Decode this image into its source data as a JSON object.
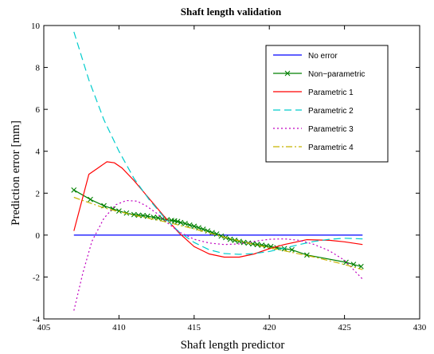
{
  "chart_data": {
    "type": "line",
    "title": "Shaft length validation",
    "xlabel": "Shaft length predictor",
    "ylabel": "Prediction error [mm]",
    "xlim": [
      405,
      430
    ],
    "ylim": [
      -4,
      10
    ],
    "xticks": [
      405,
      410,
      415,
      420,
      425,
      430
    ],
    "yticks": [
      -4,
      -2,
      0,
      2,
      4,
      6,
      8,
      10
    ],
    "grid": false,
    "legend_position": "top-right",
    "series": [
      {
        "name": "No error",
        "color": "#0000ff",
        "dash": "solid",
        "marker": "none",
        "x": [
          407,
          426.2
        ],
        "y": [
          0,
          0
        ]
      },
      {
        "name": "Non−parametric",
        "color": "#008000",
        "dash": "solid",
        "marker": "x",
        "x": [
          407,
          408.1,
          409,
          409.6,
          410,
          410.5,
          411,
          411.3,
          411.6,
          411.9,
          412.3,
          412.6,
          412.9,
          413.2,
          413.5,
          413.7,
          413.9,
          414.1,
          414.4,
          414.7,
          415,
          415.3,
          415.6,
          415.9,
          416.2,
          416.5,
          416.8,
          417.1,
          417.4,
          417.7,
          418,
          418.3,
          418.6,
          418.9,
          419.2,
          419.5,
          419.8,
          420.1,
          420.5,
          421,
          421.5,
          422.5,
          425.1,
          425.6,
          426.1
        ],
        "y": [
          2.15,
          1.7,
          1.4,
          1.25,
          1.15,
          1.05,
          0.98,
          0.95,
          0.93,
          0.9,
          0.85,
          0.82,
          0.78,
          0.73,
          0.7,
          0.68,
          0.65,
          0.6,
          0.55,
          0.48,
          0.42,
          0.35,
          0.28,
          0.2,
          0.12,
          0.05,
          -0.05,
          -0.12,
          -0.2,
          -0.25,
          -0.3,
          -0.35,
          -0.38,
          -0.42,
          -0.45,
          -0.48,
          -0.52,
          -0.55,
          -0.6,
          -0.65,
          -0.7,
          -0.95,
          -1.3,
          -1.4,
          -1.5
        ]
      },
      {
        "name": "Parametric 1",
        "color": "#ff0000",
        "dash": "solid",
        "marker": "none",
        "x": [
          407,
          408,
          408.6,
          409.2,
          409.7,
          410.2,
          411,
          412,
          413,
          414,
          415,
          416,
          417,
          418,
          419,
          420,
          421,
          422.5,
          424,
          425,
          426.2
        ],
        "y": [
          0.2,
          2.9,
          3.2,
          3.5,
          3.45,
          3.2,
          2.6,
          1.75,
          0.9,
          0.1,
          -0.55,
          -0.9,
          -1.05,
          -1.05,
          -0.9,
          -0.65,
          -0.45,
          -0.22,
          -0.25,
          -0.32,
          -0.45
        ]
      },
      {
        "name": "Parametric 2",
        "color": "#00cccc",
        "dash": "dashed",
        "marker": "none",
        "x": [
          407,
          408,
          409,
          410,
          411,
          412,
          413,
          414,
          415,
          416,
          417,
          418,
          419,
          420,
          421,
          422,
          423,
          424,
          425,
          426.2
        ],
        "y": [
          9.7,
          7.4,
          5.5,
          4.0,
          2.7,
          1.7,
          0.85,
          0.15,
          -0.35,
          -0.7,
          -0.88,
          -0.92,
          -0.88,
          -0.78,
          -0.62,
          -0.45,
          -0.3,
          -0.2,
          -0.15,
          -0.18
        ]
      },
      {
        "name": "Parametric 3",
        "color": "#c000c0",
        "dash": "dotted",
        "marker": "none",
        "x": [
          407,
          407.6,
          408.2,
          409,
          409.8,
          410.5,
          411.2,
          411.8,
          412.5,
          413.2,
          414,
          415,
          416,
          417,
          418,
          419,
          420,
          421,
          422,
          423,
          424,
          425,
          426.2
        ],
        "y": [
          -3.6,
          -1.8,
          -0.3,
          0.8,
          1.45,
          1.65,
          1.62,
          1.4,
          1.05,
          0.6,
          0.15,
          -0.2,
          -0.38,
          -0.45,
          -0.42,
          -0.3,
          -0.2,
          -0.18,
          -0.25,
          -0.45,
          -0.75,
          -1.2,
          -2.1
        ]
      },
      {
        "name": "Parametric 4",
        "color": "#c8b400",
        "dash": "dashdot",
        "marker": "none",
        "x": [
          407,
          409,
          411,
          413,
          415,
          417,
          419,
          421,
          423,
          425,
          426.2
        ],
        "y": [
          1.8,
          1.3,
          0.95,
          0.65,
          0.3,
          -0.1,
          -0.45,
          -0.75,
          -1.05,
          -1.4,
          -1.65
        ]
      }
    ]
  }
}
